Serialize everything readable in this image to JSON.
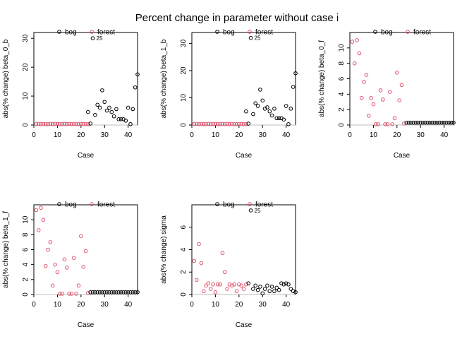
{
  "figure": {
    "title": "Percent change in parameter without case i",
    "legend": {
      "labels": [
        "bog",
        "forest"
      ],
      "position": "top"
    },
    "colors": {
      "bog": "#000000",
      "forest": "#DF536B",
      "refline": "#BEBEBE"
    }
  },
  "chart_data": [
    {
      "type": "scatter",
      "ylabel": "abs(% change) beta_0_b",
      "xlabel": "Case",
      "xlim": [
        0,
        44
      ],
      "ylim": [
        0,
        32
      ],
      "xticks": [
        0,
        10,
        20,
        30,
        40
      ],
      "yticks": [
        0,
        10,
        20,
        30
      ],
      "annotations": [
        {
          "x": 25,
          "y": 30,
          "text": "25"
        }
      ],
      "series": [
        {
          "name": "forest",
          "x": [
            1,
            2,
            3,
            4,
            5,
            6,
            7,
            8,
            9,
            10,
            11,
            12,
            13,
            14,
            15,
            16,
            17,
            18,
            19,
            20,
            21,
            22,
            23
          ],
          "y": [
            0.4,
            0.4,
            0.3,
            0.4,
            0.3,
            0.3,
            0.4,
            0.3,
            0.4,
            0.4,
            0.3,
            0.3,
            0.4,
            0.3,
            0.4,
            0.3,
            0.4,
            0.3,
            0.3,
            0.4,
            0.4,
            0.3,
            0.3
          ]
        },
        {
          "name": "bog",
          "x": [
            23,
            24,
            25,
            26,
            27,
            28,
            29,
            30,
            31,
            32,
            33,
            34,
            35,
            36,
            37,
            38,
            39,
            40,
            41,
            42,
            43,
            44
          ],
          "y": [
            4.5,
            0.5,
            30,
            3.5,
            7,
            6,
            12,
            8,
            5,
            6,
            4.5,
            3,
            5.5,
            2,
            2,
            2,
            1.5,
            6,
            0.3,
            5.5,
            13,
            17.5
          ]
        }
      ]
    },
    {
      "type": "scatter",
      "ylabel": "abs(% change) beta_1_b",
      "xlabel": "Case",
      "xlim": [
        0,
        44
      ],
      "ylim": [
        0,
        34
      ],
      "xticks": [
        0,
        10,
        20,
        30,
        40
      ],
      "yticks": [
        0,
        10,
        20,
        30
      ],
      "annotations": [
        {
          "x": 25,
          "y": 32,
          "text": "25"
        }
      ],
      "series": [
        {
          "name": "forest",
          "x": [
            1,
            2,
            3,
            4,
            5,
            6,
            7,
            8,
            9,
            10,
            11,
            12,
            13,
            14,
            15,
            16,
            17,
            18,
            19,
            20,
            21,
            22,
            23
          ],
          "y": [
            0.4,
            0.4,
            0.3,
            0.4,
            0.3,
            0.3,
            0.4,
            0.3,
            0.4,
            0.4,
            0.3,
            0.3,
            0.4,
            0.3,
            0.4,
            0.3,
            0.4,
            0.3,
            0.3,
            0.4,
            0.4,
            0.3,
            0.3
          ]
        },
        {
          "name": "bog",
          "x": [
            23,
            24,
            25,
            26,
            27,
            28,
            29,
            30,
            31,
            32,
            33,
            34,
            35,
            36,
            37,
            38,
            39,
            40,
            41,
            42,
            43,
            44
          ],
          "y": [
            5,
            0.5,
            32,
            4,
            8,
            7,
            13,
            9,
            6,
            6.5,
            5,
            3.5,
            6,
            2.5,
            2.5,
            2.5,
            2,
            7,
            0.3,
            6,
            14,
            19
          ]
        }
      ]
    },
    {
      "type": "scatter",
      "ylabel": "abs(% change) beta_0_f",
      "xlabel": "Case",
      "xlim": [
        0,
        44
      ],
      "ylim": [
        0,
        12
      ],
      "xticks": [
        0,
        10,
        20,
        30,
        40
      ],
      "yticks": [
        0,
        2,
        4,
        6,
        8,
        10
      ],
      "annotations": [],
      "series": [
        {
          "name": "forest",
          "x": [
            1,
            2,
            3,
            4,
            5,
            6,
            7,
            8,
            9,
            10,
            11,
            12,
            13,
            14,
            15,
            16,
            17,
            18,
            19,
            20,
            21,
            22,
            23
          ],
          "y": [
            10.8,
            8,
            11,
            9.3,
            3.5,
            5.6,
            6.5,
            1.2,
            3.5,
            2.7,
            0.1,
            0.1,
            4.5,
            3.3,
            0.1,
            0.1,
            4.3,
            0.1,
            0.9,
            6.8,
            3.2,
            5.2,
            0.2
          ]
        },
        {
          "name": "bog",
          "x": [
            24,
            25,
            26,
            27,
            28,
            29,
            30,
            31,
            32,
            33,
            34,
            35,
            36,
            37,
            38,
            39,
            40,
            41,
            42,
            43,
            44
          ],
          "y": [
            0.3,
            0.3,
            0.3,
            0.3,
            0.3,
            0.3,
            0.3,
            0.3,
            0.3,
            0.3,
            0.3,
            0.3,
            0.3,
            0.3,
            0.3,
            0.3,
            0.3,
            0.3,
            0.3,
            0.3,
            0.3
          ]
        }
      ]
    },
    {
      "type": "scatter",
      "ylabel": "abs(% change) beta_1_f",
      "xlabel": "Case",
      "xlim": [
        0,
        44
      ],
      "ylim": [
        0,
        12
      ],
      "xticks": [
        0,
        10,
        20,
        30,
        40
      ],
      "yticks": [
        0,
        2,
        4,
        6,
        8,
        10
      ],
      "annotations": [],
      "series": [
        {
          "name": "forest",
          "x": [
            1,
            2,
            3,
            4,
            5,
            6,
            7,
            8,
            9,
            10,
            11,
            12,
            13,
            14,
            15,
            16,
            17,
            18,
            19,
            20,
            21,
            22,
            23
          ],
          "y": [
            11.3,
            8.6,
            11.6,
            10,
            3.8,
            6,
            7,
            1.2,
            4,
            3,
            0.1,
            0.1,
            4.7,
            3.6,
            0.1,
            0.1,
            4.9,
            0.1,
            1.2,
            7.8,
            3.7,
            5.8,
            0.2
          ]
        },
        {
          "name": "bog",
          "x": [
            24,
            25,
            26,
            27,
            28,
            29,
            30,
            31,
            32,
            33,
            34,
            35,
            36,
            37,
            38,
            39,
            40,
            41,
            42,
            43,
            44
          ],
          "y": [
            0.3,
            0.3,
            0.3,
            0.3,
            0.3,
            0.3,
            0.3,
            0.3,
            0.3,
            0.3,
            0.3,
            0.3,
            0.3,
            0.3,
            0.3,
            0.3,
            0.3,
            0.3,
            0.3,
            0.3,
            0.3
          ]
        }
      ]
    },
    {
      "type": "scatter",
      "ylabel": "abs(% change) sigma",
      "xlabel": "Case",
      "xlim": [
        0,
        44
      ],
      "ylim": [
        0,
        8
      ],
      "xticks": [
        0,
        10,
        20,
        30,
        40
      ],
      "yticks": [
        0,
        2,
        4,
        6
      ],
      "annotations": [
        {
          "x": 25,
          "y": 7.5,
          "text": "25"
        }
      ],
      "series": [
        {
          "name": "forest",
          "x": [
            1,
            2,
            3,
            4,
            5,
            6,
            7,
            8,
            9,
            10,
            11,
            12,
            13,
            14,
            15,
            16,
            17,
            18,
            19,
            20,
            21,
            22,
            23
          ],
          "y": [
            3,
            1.3,
            4.5,
            2.8,
            0.3,
            0.8,
            1,
            0.5,
            0.9,
            0.2,
            0.9,
            0.9,
            3.7,
            2,
            0.5,
            0.9,
            0.8,
            0.9,
            0.3,
            0.9,
            0.8,
            0.5,
            0.9
          ]
        },
        {
          "name": "bog",
          "x": [
            24,
            25,
            26,
            27,
            28,
            29,
            30,
            31,
            32,
            33,
            34,
            35,
            36,
            37,
            38,
            39,
            40,
            41,
            42,
            43,
            44
          ],
          "y": [
            1,
            7.5,
            0.5,
            0.8,
            0.4,
            0.7,
            0.1,
            0.5,
            0.8,
            0.3,
            0.7,
            0.3,
            0.6,
            0.4,
            1,
            0.9,
            1,
            0.9,
            0.5,
            0.3,
            0.2
          ]
        }
      ]
    }
  ]
}
